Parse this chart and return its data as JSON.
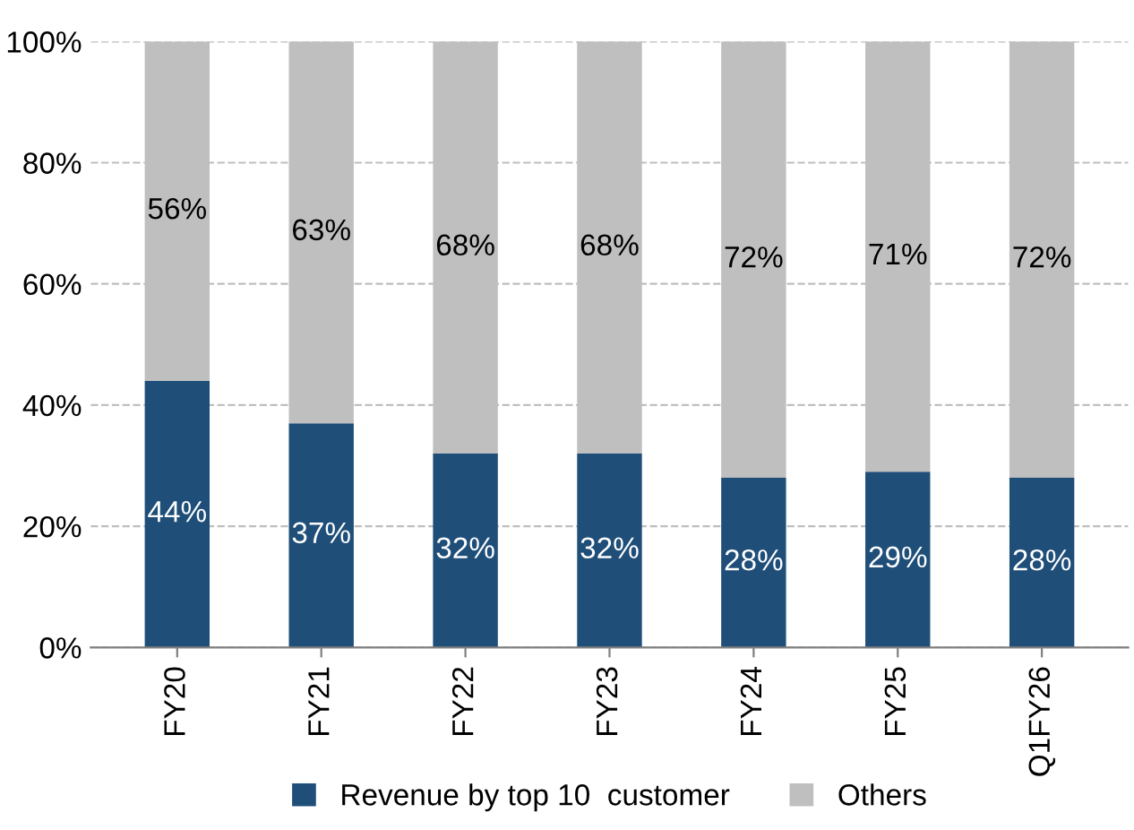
{
  "chart_data": {
    "type": "bar",
    "stacked": true,
    "categories": [
      "FY20",
      "FY21",
      "FY22",
      "FY23",
      "FY24",
      "FY25",
      "Q1FY26"
    ],
    "series": [
      {
        "name": "Revenue by top 10  customer",
        "color": "#1f4e79",
        "values": [
          44,
          37,
          32,
          32,
          28,
          29,
          28
        ],
        "value_labels": [
          "44%",
          "37%",
          "32%",
          "32%",
          "28%",
          "29%",
          "28%"
        ]
      },
      {
        "name": "Others",
        "color": "#bfbfbf",
        "values": [
          56,
          63,
          68,
          68,
          72,
          71,
          72
        ],
        "value_labels": [
          "56%",
          "63%",
          "68%",
          "68%",
          "72%",
          "71%",
          "72%"
        ]
      }
    ],
    "ylim": [
      0,
      100
    ],
    "yticks": [
      {
        "value": 0,
        "label": "0%"
      },
      {
        "value": 20,
        "label": "20%"
      },
      {
        "value": 40,
        "label": "40%"
      },
      {
        "value": 60,
        "label": "60%"
      },
      {
        "value": 80,
        "label": "80%"
      },
      {
        "value": 100,
        "label": "100%"
      }
    ],
    "grid": "y",
    "legend": "bottom"
  }
}
